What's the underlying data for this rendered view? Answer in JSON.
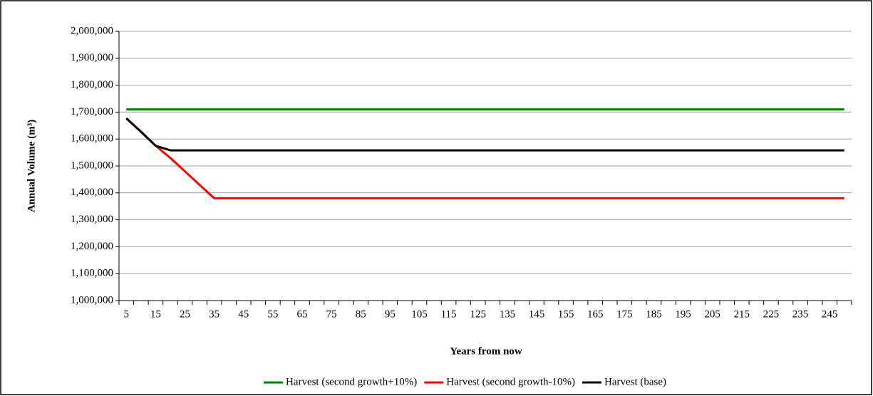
{
  "chart_data": {
    "type": "line",
    "x_label": "Years from now",
    "y_label": "Annual Volume (m³)",
    "categories": [
      "5",
      null,
      "15",
      null,
      "25",
      null,
      "35",
      null,
      "45",
      null,
      "55",
      null,
      "65",
      null,
      "75",
      null,
      "85",
      null,
      "95",
      null,
      "105",
      null,
      "115",
      null,
      "125",
      null,
      "135",
      null,
      "145",
      null,
      "155",
      null,
      "165",
      null,
      "175",
      null,
      "185",
      null,
      "195",
      null,
      "205",
      null,
      "215",
      null,
      "225",
      null,
      "235",
      null,
      "245",
      null
    ],
    "series": [
      {
        "name": "Harvest (second growth+10%)",
        "color": "#008000",
        "values": [
          1710000,
          1710000,
          1710000,
          1710000,
          1710000,
          1710000,
          1710000,
          1710000,
          1710000,
          1710000,
          1710000,
          1710000,
          1710000,
          1710000,
          1710000,
          1710000,
          1710000,
          1710000,
          1710000,
          1710000,
          1710000,
          1710000,
          1710000,
          1710000,
          1710000,
          1710000,
          1710000,
          1710000,
          1710000,
          1710000,
          1710000,
          1710000,
          1710000,
          1710000,
          1710000,
          1710000,
          1710000,
          1710000,
          1710000,
          1710000,
          1710000,
          1710000,
          1710000,
          1710000,
          1710000,
          1710000,
          1710000,
          1710000,
          1710000,
          1710000
        ]
      },
      {
        "name": "Harvest (second growth-10%)",
        "color": "#ff0000",
        "values": [
          1677000,
          1627000,
          1575000,
          1530000,
          1480000,
          1430000,
          1380000,
          1380000,
          1380000,
          1380000,
          1380000,
          1380000,
          1380000,
          1380000,
          1380000,
          1380000,
          1380000,
          1380000,
          1380000,
          1380000,
          1380000,
          1380000,
          1380000,
          1380000,
          1380000,
          1380000,
          1380000,
          1380000,
          1380000,
          1380000,
          1380000,
          1380000,
          1380000,
          1380000,
          1380000,
          1380000,
          1380000,
          1380000,
          1380000,
          1380000,
          1380000,
          1380000,
          1380000,
          1380000,
          1380000,
          1380000,
          1380000,
          1380000,
          1380000,
          1380000
        ]
      },
      {
        "name": "Harvest (base)",
        "color": "#000000",
        "values": [
          1677000,
          1627000,
          1575000,
          1558000,
          1558000,
          1558000,
          1558000,
          1558000,
          1558000,
          1558000,
          1558000,
          1558000,
          1558000,
          1558000,
          1558000,
          1558000,
          1558000,
          1558000,
          1558000,
          1558000,
          1558000,
          1558000,
          1558000,
          1558000,
          1558000,
          1558000,
          1558000,
          1558000,
          1558000,
          1558000,
          1558000,
          1558000,
          1558000,
          1558000,
          1558000,
          1558000,
          1558000,
          1558000,
          1558000,
          1558000,
          1558000,
          1558000,
          1558000,
          1558000,
          1558000,
          1558000,
          1558000,
          1558000,
          1558000,
          1558000
        ]
      }
    ],
    "ylim": [
      1000000,
      2000000
    ],
    "yticks": [
      {
        "value": 1000000,
        "label": "1,000,000"
      },
      {
        "value": 1100000,
        "label": "1,100,000"
      },
      {
        "value": 1200000,
        "label": "1,200,000"
      },
      {
        "value": 1300000,
        "label": "1,300,000"
      },
      {
        "value": 1400000,
        "label": "1,400,000"
      },
      {
        "value": 1500000,
        "label": "1,500,000"
      },
      {
        "value": 1600000,
        "label": "1,600,000"
      },
      {
        "value": 1700000,
        "label": "1,700,000"
      },
      {
        "value": 1800000,
        "label": "1,800,000"
      },
      {
        "value": 1900000,
        "label": "1,900,000"
      },
      {
        "value": 2000000,
        "label": "2,000,000"
      }
    ],
    "grid": true,
    "legend": "bottom"
  }
}
